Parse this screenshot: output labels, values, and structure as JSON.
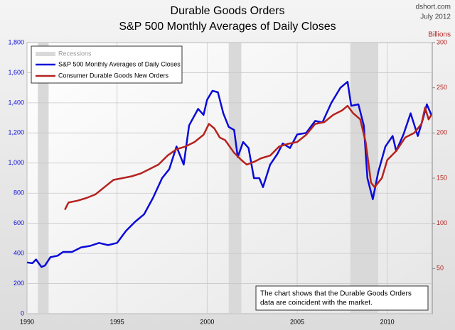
{
  "chart_data": {
    "type": "line",
    "title": "Durable Goods Orders",
    "subtitle": "S&P 500 Monthly Averages of Daily Closes",
    "source": "dshort.com",
    "date": "July 2012",
    "y2_label": "Billions",
    "annotation": [
      "The chart shows that the Durable Goods Orders",
      "data are coincident with the market."
    ],
    "recession_label": "Recessions",
    "recession_color": "#d9d9d9",
    "recessions": [
      {
        "start": 1990.6,
        "end": 1991.2
      },
      {
        "start": 2001.2,
        "end": 2001.9
      },
      {
        "start": 2007.95,
        "end": 2009.5
      }
    ],
    "grid": true,
    "legend": "upper left",
    "xlim": [
      1990,
      2012.5
    ],
    "xticks": [
      1990,
      1995,
      2000,
      2005,
      2010
    ],
    "ylim": [
      0,
      1800
    ],
    "yticks": [
      0,
      200,
      400,
      600,
      800,
      {
        "value": 1000,
        "label": "1,000"
      },
      {
        "value": 1200,
        "label": "1,200"
      },
      {
        "value": 1400,
        "label": "1,400"
      },
      {
        "value": 1600,
        "label": "1,600"
      },
      {
        "value": 1800,
        "label": "1,800"
      }
    ],
    "y2lim": [
      0,
      300
    ],
    "y2ticks": [
      50,
      100,
      150,
      200,
      250,
      300
    ],
    "series": [
      {
        "name": "S&P 500 Monthly Averages of Daily Closes",
        "color": "#0a0ad8",
        "axis": "y",
        "x": [
          1990.0,
          1990.3,
          1990.5,
          1990.8,
          1991.0,
          1991.3,
          1991.7,
          1992.0,
          1992.5,
          1993.0,
          1993.5,
          1994.0,
          1994.5,
          1995.0,
          1995.5,
          1996.0,
          1996.5,
          1997.0,
          1997.5,
          1997.9,
          1998.3,
          1998.7,
          1999.0,
          1999.5,
          1999.8,
          2000.0,
          2000.3,
          2000.6,
          2000.9,
          2001.2,
          2001.5,
          2001.7,
          2002.0,
          2002.3,
          2002.6,
          2002.9,
          2003.1,
          2003.5,
          2003.9,
          2004.2,
          2004.6,
          2005.0,
          2005.5,
          2006.0,
          2006.4,
          2006.9,
          2007.4,
          2007.8,
          2008.0,
          2008.4,
          2008.7,
          2008.9,
          2009.2,
          2009.5,
          2009.9,
          2010.3,
          2010.5,
          2010.9,
          2011.3,
          2011.7,
          2012.0,
          2012.2,
          2012.45
        ],
        "values": [
          340,
          335,
          360,
          310,
          320,
          375,
          385,
          410,
          410,
          440,
          450,
          470,
          455,
          470,
          550,
          610,
          660,
          770,
          900,
          960,
          1110,
          990,
          1250,
          1360,
          1320,
          1420,
          1480,
          1470,
          1330,
          1240,
          1220,
          1040,
          1140,
          1100,
          900,
          900,
          840,
          990,
          1060,
          1130,
          1100,
          1190,
          1200,
          1280,
          1270,
          1400,
          1500,
          1540,
          1380,
          1390,
          1250,
          900,
          760,
          940,
          1110,
          1180,
          1080,
          1190,
          1330,
          1180,
          1300,
          1390,
          1320
        ]
      },
      {
        "name": "Consumer Durable Goods New Orders",
        "color": "#b5231f",
        "axis": "y2",
        "x": [
          1992.1,
          1992.3,
          1992.8,
          1993.3,
          1993.8,
          1994.3,
          1994.8,
          1995.3,
          1995.8,
          1996.3,
          1996.8,
          1997.3,
          1997.8,
          1998.3,
          1998.8,
          1999.3,
          1999.8,
          2000.1,
          2000.4,
          2000.7,
          2001.0,
          2001.5,
          2001.9,
          2002.2,
          2002.6,
          2003.0,
          2003.5,
          2004.0,
          2004.5,
          2005.0,
          2005.5,
          2006.0,
          2006.5,
          2007.0,
          2007.5,
          2007.8,
          2008.1,
          2008.5,
          2008.8,
          2009.1,
          2009.3,
          2009.7,
          2010.0,
          2010.5,
          2011.0,
          2011.5,
          2011.9,
          2012.1,
          2012.3,
          2012.45
        ],
        "values": [
          115,
          123,
          125,
          128,
          132,
          140,
          148,
          150,
          152,
          155,
          160,
          165,
          175,
          182,
          185,
          190,
          198,
          210,
          205,
          195,
          192,
          178,
          170,
          165,
          168,
          172,
          175,
          185,
          188,
          190,
          198,
          210,
          212,
          220,
          225,
          230,
          222,
          215,
          190,
          145,
          140,
          150,
          170,
          180,
          195,
          200,
          210,
          228,
          215,
          220
        ]
      }
    ]
  }
}
